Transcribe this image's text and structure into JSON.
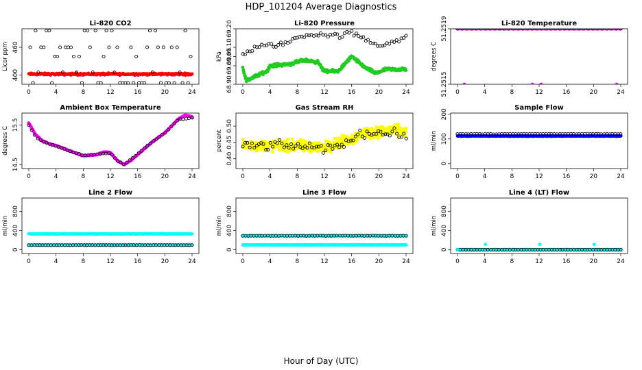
{
  "title": "HDP_101204  Average Diagnostics",
  "xlabel": "Hour of Day (UTC)",
  "colors": {
    "black": "#000000",
    "red": "#ff0000",
    "green": "#22cc22",
    "magenta": "#ff00ff",
    "yellow": "#ffff00",
    "blue": "#0000ff",
    "cyan": "#00ffff"
  },
  "chart_data": [
    {
      "type": "scatter",
      "title": "Li-820 CO2",
      "ylabel": "Licor ppm",
      "xlim": [
        0,
        24
      ],
      "ylim": [
        380,
        500
      ],
      "xticks": [
        0,
        4,
        8,
        12,
        16,
        20,
        24
      ],
      "yticks": [
        "400",
        "460"
      ],
      "series": [
        {
          "color": "red",
          "pattern": "band",
          "y": 402,
          "jitter": 3,
          "n": 300
        },
        {
          "color": "black",
          "pattern": "levels",
          "levels": [
            383,
            406,
            440,
            460,
            496
          ],
          "n": 60
        }
      ]
    },
    {
      "type": "scatter",
      "title": "Li-820 Pressure",
      "ylabel": "kPa",
      "xlim": [
        0,
        24
      ],
      "ylim": [
        68.9,
        69.2
      ],
      "xticks": [
        0,
        4,
        8,
        12,
        16,
        20,
        24
      ],
      "yticks": [
        "68.90",
        "69.00",
        "69.05",
        "69.10",
        "69.20"
      ],
      "ytickvals": [
        68.9,
        69.0,
        69.05,
        69.1,
        69.2
      ],
      "series": [
        {
          "color": "green",
          "pattern": "curve",
          "knots": [
            [
              0,
              68.99
            ],
            [
              0.5,
              68.92
            ],
            [
              3.5,
              68.97
            ],
            [
              4,
              69.0
            ],
            [
              7,
              69.01
            ],
            [
              9,
              69.03
            ],
            [
              11,
              69.02
            ],
            [
              12,
              68.97
            ],
            [
              14,
              68.97
            ],
            [
              16,
              69.05
            ],
            [
              18,
              68.99
            ],
            [
              19.5,
              68.96
            ],
            [
              21,
              68.98
            ],
            [
              24,
              68.98
            ]
          ],
          "jitter": 0.012,
          "n": 420
        },
        {
          "color": "black",
          "pattern": "curve",
          "knots": [
            [
              0,
              69.06
            ],
            [
              2,
              69.1
            ],
            [
              4,
              69.11
            ],
            [
              6,
              69.12
            ],
            [
              8,
              69.15
            ],
            [
              10,
              69.17
            ],
            [
              12,
              69.17
            ],
            [
              14,
              69.16
            ],
            [
              16,
              69.18
            ],
            [
              18,
              69.14
            ],
            [
              20,
              69.11
            ],
            [
              22,
              69.13
            ],
            [
              24,
              69.15
            ]
          ],
          "jitter": 0.02,
          "n": 70
        }
      ]
    },
    {
      "type": "scatter",
      "title": "Li-820 Temperature",
      "ylabel": "degrees C",
      "xlim": [
        0,
        24
      ],
      "ylim": [
        51.2515,
        51.2519
      ],
      "xticks": [
        0,
        4,
        8,
        12,
        16,
        20,
        24
      ],
      "yticks": [
        "51.2515",
        "51.2519"
      ],
      "series": [
        {
          "color": "magenta",
          "pattern": "band",
          "y": 51.2519,
          "jitter": 0,
          "n": 140
        },
        {
          "color": "black",
          "pattern": "band",
          "y": 51.2519,
          "jitter": 0,
          "n": 36
        },
        {
          "color": "magenta",
          "pattern": "points",
          "points": [
            [
              1,
              51.2515
            ],
            [
              11,
              51.2515
            ],
            [
              12.3,
              51.2515
            ],
            [
              23.4,
              51.2515
            ]
          ]
        }
      ]
    },
    {
      "type": "scatter",
      "title": "Ambient Box Temperature",
      "ylabel": "degrees C",
      "xlim": [
        0,
        24
      ],
      "ylim": [
        14.4,
        15.8
      ],
      "xticks": [
        0,
        4,
        8,
        12,
        16,
        20,
        24
      ],
      "yticks": [
        "14.5",
        "15.5"
      ],
      "series": [
        {
          "color": "magenta",
          "pattern": "curve",
          "knots": [
            [
              0,
              15.55
            ],
            [
              1,
              15.25
            ],
            [
              2,
              15.1
            ],
            [
              3,
              15.02
            ],
            [
              4,
              14.98
            ],
            [
              6,
              14.85
            ],
            [
              8,
              14.72
            ],
            [
              10,
              14.75
            ],
            [
              11,
              14.82
            ],
            [
              12,
              14.8
            ],
            [
              13,
              14.6
            ],
            [
              14,
              14.5
            ],
            [
              15,
              14.6
            ],
            [
              16,
              14.75
            ],
            [
              18,
              15.05
            ],
            [
              20,
              15.3
            ],
            [
              22,
              15.65
            ],
            [
              23,
              15.75
            ],
            [
              24,
              15.7
            ]
          ],
          "jitter": 0.015,
          "n": 300
        },
        {
          "color": "black",
          "pattern": "curve",
          "knots": [
            [
              0,
              15.5
            ],
            [
              1,
              15.2
            ],
            [
              2,
              15.08
            ],
            [
              4,
              14.97
            ],
            [
              6,
              14.84
            ],
            [
              8,
              14.73
            ],
            [
              10,
              14.76
            ],
            [
              12,
              14.79
            ],
            [
              13,
              14.6
            ],
            [
              14,
              14.5
            ],
            [
              16,
              14.76
            ],
            [
              18,
              15.06
            ],
            [
              20,
              15.3
            ],
            [
              22,
              15.64
            ],
            [
              24,
              15.68
            ]
          ],
          "jitter": 0.01,
          "n": 56
        }
      ]
    },
    {
      "type": "scatter",
      "title": "Gas Stream RH",
      "ylabel": "percent",
      "xlim": [
        0,
        24
      ],
      "ylim": [
        0.37,
        0.54
      ],
      "xticks": [
        0,
        4,
        8,
        12,
        16,
        20,
        24
      ],
      "yticks": [
        "0.40",
        "0.45",
        "0.50"
      ],
      "ytickvals": [
        0.4,
        0.45,
        0.5
      ],
      "series": [
        {
          "color": "yellow",
          "pattern": "curve",
          "knots": [
            [
              0,
              0.44
            ],
            [
              4,
              0.44
            ],
            [
              8,
              0.44
            ],
            [
              12,
              0.435
            ],
            [
              14,
              0.45
            ],
            [
              16,
              0.46
            ],
            [
              18,
              0.48
            ],
            [
              20,
              0.48
            ],
            [
              22,
              0.49
            ],
            [
              24,
              0.48
            ]
          ],
          "jitter": 0.025,
          "n": 560
        },
        {
          "color": "black",
          "pattern": "curve",
          "knots": [
            [
              0,
              0.44
            ],
            [
              4,
              0.44
            ],
            [
              8,
              0.44
            ],
            [
              12,
              0.43
            ],
            [
              14,
              0.44
            ],
            [
              16,
              0.46
            ],
            [
              18,
              0.48
            ],
            [
              20,
              0.48
            ],
            [
              22,
              0.48
            ],
            [
              24,
              0.47
            ]
          ],
          "jitter": 0.02,
          "n": 72
        }
      ]
    },
    {
      "type": "scatter",
      "title": "Sample Flow",
      "ylabel": "ml/min",
      "xlim": [
        0,
        24
      ],
      "ylim": [
        -20,
        205
      ],
      "xticks": [
        0,
        4,
        8,
        12,
        16,
        20,
        24
      ],
      "yticks": [
        "0",
        "100",
        "200"
      ],
      "ytickvals": [
        0,
        100,
        200
      ],
      "series": [
        {
          "color": "blue",
          "pattern": "band",
          "y": 112,
          "jitter": 2,
          "n": 320
        },
        {
          "color": "black",
          "pattern": "band",
          "y": 120,
          "jitter": 1.5,
          "n": 60
        }
      ]
    },
    {
      "type": "scatter",
      "title": "Line 2 Flow",
      "ylabel": "ml/min",
      "xlim": [
        0,
        24
      ],
      "ylim": [
        -80,
        1080
      ],
      "xticks": [
        0,
        4,
        8,
        12,
        16,
        20,
        24
      ],
      "yticks": [
        "0",
        "400",
        "800"
      ],
      "ytickvals": [
        0,
        400,
        800
      ],
      "series": [
        {
          "color": "cyan",
          "pattern": "band",
          "y": 330,
          "jitter": 8,
          "n": 300
        },
        {
          "color": "cyan",
          "pattern": "band",
          "y": 100,
          "jitter": 4,
          "n": 200
        },
        {
          "color": "black",
          "pattern": "band",
          "y": 95,
          "jitter": 2,
          "n": 60
        }
      ]
    },
    {
      "type": "scatter",
      "title": "Line 3 Flow",
      "ylabel": "ml/min",
      "xlim": [
        0,
        24
      ],
      "ylim": [
        -80,
        1080
      ],
      "xticks": [
        0,
        4,
        8,
        12,
        16,
        20,
        24
      ],
      "yticks": [
        "0",
        "400",
        "800"
      ],
      "ytickvals": [
        0,
        400,
        800
      ],
      "series": [
        {
          "color": "cyan",
          "pattern": "band",
          "y": 100,
          "jitter": 6,
          "n": 320
        },
        {
          "color": "cyan",
          "pattern": "band",
          "y": 290,
          "jitter": 6,
          "n": 220
        },
        {
          "color": "black",
          "pattern": "band",
          "y": 290,
          "jitter": 4,
          "n": 60
        }
      ]
    },
    {
      "type": "scatter",
      "title": "Line 4 (LT) Flow",
      "ylabel": "ml/min",
      "xlim": [
        0,
        24
      ],
      "ylim": [
        -80,
        1080
      ],
      "xticks": [
        0,
        4,
        8,
        12,
        16,
        20,
        24
      ],
      "yticks": [
        "0",
        "400",
        "800"
      ],
      "ytickvals": [
        0,
        400,
        800
      ],
      "series": [
        {
          "color": "cyan",
          "pattern": "band",
          "y": 0,
          "jitter": 1,
          "n": 260
        },
        {
          "color": "black",
          "pattern": "band",
          "y": 0,
          "jitter": 1,
          "n": 60
        },
        {
          "color": "cyan",
          "pattern": "points",
          "points": [
            [
              0,
              0
            ],
            [
              4.1,
              110
            ],
            [
              12.1,
              110
            ],
            [
              20.1,
              110
            ]
          ]
        }
      ]
    }
  ]
}
